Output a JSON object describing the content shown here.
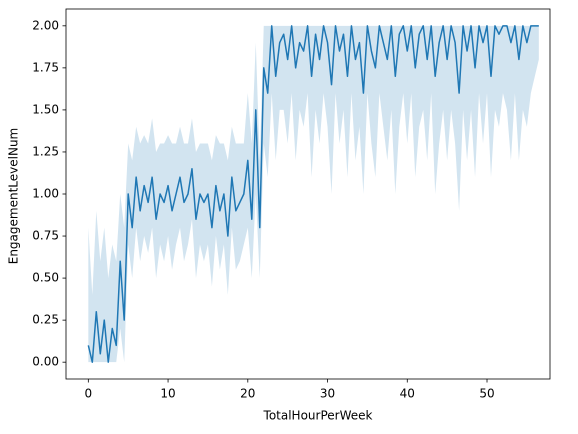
{
  "chart_data": {
    "type": "line",
    "x_label": "TotalHourPerWeek",
    "y_label": "EngagementLevelNum",
    "x": [
      0,
      0.5,
      1,
      1.5,
      2,
      2.5,
      3,
      3.5,
      4,
      4.5,
      5,
      5.5,
      6,
      6.5,
      7,
      7.5,
      8,
      8.5,
      9,
      9.5,
      10,
      10.5,
      11,
      11.5,
      12,
      12.5,
      13,
      13.5,
      14,
      14.5,
      15,
      15.5,
      16,
      16.5,
      17,
      17.5,
      18,
      18.5,
      19,
      19.5,
      20,
      20.5,
      21,
      21.5,
      22,
      22.5,
      23,
      23.5,
      24,
      24.5,
      25,
      25.5,
      26,
      26.5,
      27,
      27.5,
      28,
      28.5,
      29,
      29.5,
      30,
      30.5,
      31,
      31.5,
      32,
      32.5,
      33,
      33.5,
      34,
      34.5,
      35,
      35.5,
      36,
      36.5,
      37,
      37.5,
      38,
      38.5,
      39,
      39.5,
      40,
      40.5,
      41,
      41.5,
      42,
      42.5,
      43,
      43.5,
      44,
      44.5,
      45,
      45.5,
      46,
      46.5,
      47,
      47.5,
      48,
      48.5,
      49,
      49.5,
      50,
      50.5,
      51,
      51.5,
      52,
      52.5,
      53,
      53.5,
      54,
      54.5,
      55,
      55.5,
      56,
      56.5
    ],
    "series": [
      {
        "color": "#1f77b4",
        "values": [
          0.1,
          0,
          0.3,
          0.05,
          0.25,
          0,
          0.2,
          0.1,
          0.6,
          0.25,
          1.0,
          0.8,
          1.1,
          0.9,
          1.05,
          0.95,
          1.1,
          0.85,
          1.0,
          0.95,
          1.05,
          0.9,
          1.0,
          1.1,
          0.95,
          1.0,
          1.15,
          0.85,
          1.0,
          0.95,
          1.0,
          0.8,
          1.05,
          0.9,
          1.0,
          0.75,
          1.1,
          0.9,
          0.95,
          1.0,
          1.2,
          0.85,
          1.5,
          0.8,
          1.75,
          1.6,
          2.0,
          1.7,
          1.9,
          1.95,
          1.8,
          2.0,
          1.75,
          1.9,
          1.85,
          2.0,
          1.7,
          1.95,
          1.8,
          2.0,
          1.9,
          1.65,
          2.0,
          1.85,
          1.95,
          1.7,
          2.0,
          1.8,
          1.9,
          1.6,
          2.0,
          1.85,
          1.75,
          2.0,
          1.9,
          1.8,
          2.0,
          1.7,
          1.95,
          2.0,
          1.85,
          2.0,
          1.75,
          1.95,
          2.0,
          1.8,
          2.0,
          1.7,
          1.9,
          2.0,
          1.8,
          2.0,
          1.9,
          1.6,
          2.0,
          1.85,
          2.0,
          1.75,
          2.0,
          1.9,
          2.0,
          1.7,
          2.0,
          1.95,
          2.0,
          2.0,
          1.9,
          2.0,
          1.8,
          2.0,
          1.9,
          2.0,
          2.0,
          2.0
        ],
        "ci_lower": [
          0,
          0,
          0,
          0,
          0,
          0,
          0,
          0,
          0.2,
          0,
          0.7,
          0.5,
          0.8,
          0.6,
          0.75,
          0.65,
          0.8,
          0.5,
          0.7,
          0.6,
          0.75,
          0.55,
          0.7,
          0.8,
          0.6,
          0.7,
          0.85,
          0.5,
          0.7,
          0.6,
          0.7,
          0.45,
          0.75,
          0.55,
          0.7,
          0.4,
          0.8,
          0.55,
          0.6,
          0.7,
          0.8,
          0.5,
          1.0,
          0.5,
          1.3,
          1.1,
          1.6,
          1.2,
          1.5,
          1.5,
          1.3,
          1.6,
          1.2,
          1.5,
          1.4,
          1.6,
          1.1,
          1.5,
          1.3,
          1.6,
          1.4,
          1.0,
          1.6,
          1.3,
          1.5,
          1.1,
          1.6,
          1.2,
          1.4,
          1.0,
          1.6,
          1.3,
          1.1,
          1.6,
          1.4,
          1.2,
          1.5,
          1.0,
          1.4,
          1.6,
          1.3,
          1.6,
          1.1,
          1.4,
          1.5,
          1.2,
          1.6,
          1.0,
          1.3,
          1.5,
          1.2,
          1.5,
          1.3,
          0.9,
          1.5,
          1.2,
          1.5,
          1.1,
          1.6,
          1.3,
          1.6,
          1.1,
          1.5,
          1.4,
          1.6,
          1.5,
          1.2,
          1.6,
          1.2,
          1.5,
          1.4,
          1.6,
          1.7,
          1.8
        ],
        "ci_upper": [
          0.8,
          0.4,
          0.9,
          0.6,
          0.8,
          0.5,
          0.7,
          0.6,
          1.0,
          0.8,
          1.3,
          1.2,
          1.4,
          1.3,
          1.35,
          1.3,
          1.45,
          1.25,
          1.3,
          1.3,
          1.35,
          1.3,
          1.3,
          1.4,
          1.3,
          1.3,
          1.45,
          1.25,
          1.3,
          1.3,
          1.3,
          1.2,
          1.35,
          1.3,
          1.3,
          1.2,
          1.4,
          1.3,
          1.3,
          1.3,
          1.6,
          1.3,
          1.9,
          1.2,
          2.0,
          2.0,
          2.0,
          2.0,
          2.0,
          2.0,
          2.0,
          2.0,
          2.0,
          2.0,
          2.0,
          2.0,
          2.0,
          2.0,
          2.0,
          2.0,
          2.0,
          2.0,
          2.0,
          2.0,
          2.0,
          2.0,
          2.0,
          2.0,
          2.0,
          2.0,
          2.0,
          2.0,
          2.0,
          2.0,
          2.0,
          2.0,
          2.0,
          2.0,
          2.0,
          2.0,
          2.0,
          2.0,
          2.0,
          2.0,
          2.0,
          2.0,
          2.0,
          2.0,
          2.0,
          2.0,
          2.0,
          2.0,
          2.0,
          2.0,
          2.0,
          2.0,
          2.0,
          2.0,
          2.0,
          2.0,
          2.0,
          2.0,
          2.0,
          2.0,
          2.0,
          2.0,
          2.0,
          2.0,
          2.0,
          2.0,
          2.0,
          2.0,
          2.0,
          2.0
        ]
      }
    ],
    "xlim": [
      -2.8,
      57.9
    ],
    "ylim": [
      -0.1,
      2.1
    ],
    "xticks": [
      0,
      10,
      20,
      30,
      40,
      50
    ],
    "yticks": [
      {
        "value": 0,
        "label": "0.00"
      },
      {
        "value": 0.25,
        "label": "0.25"
      },
      {
        "value": 0.5,
        "label": "0.50"
      },
      {
        "value": 0.75,
        "label": "0.75"
      },
      {
        "value": 1,
        "label": "1.00"
      },
      {
        "value": 1.25,
        "label": "1.25"
      },
      {
        "value": 1.5,
        "label": "1.50"
      },
      {
        "value": 1.75,
        "label": "1.75"
      },
      {
        "value": 2,
        "label": "2.00"
      }
    ]
  }
}
